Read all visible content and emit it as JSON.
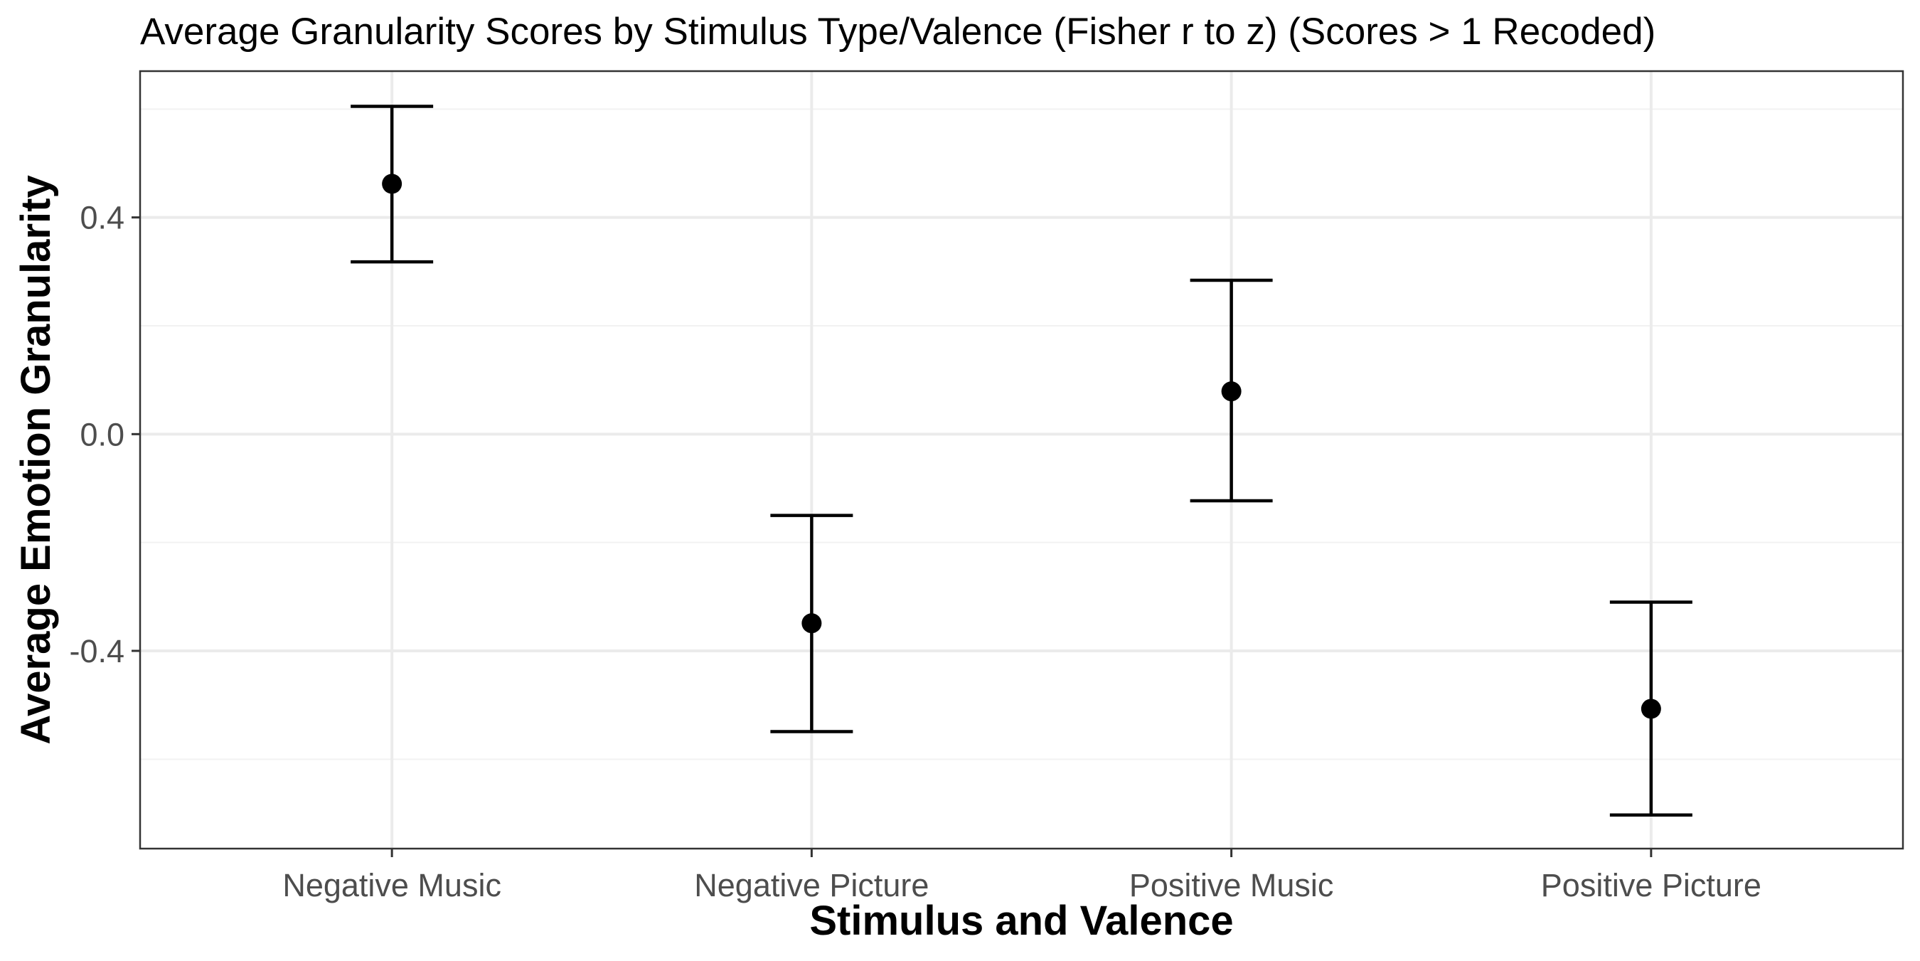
{
  "chart_data": {
    "type": "scatter",
    "title": "Average Granularity Scores by Stimulus Type/Valence (Fisher r to z) (Scores > 1 Recoded)",
    "xlabel": "Stimulus and Valence",
    "ylabel": "Average Emotion Granularity",
    "categories": [
      "Negative Music",
      "Negative Picture",
      "Positive Music",
      "Positive Picture"
    ],
    "values": [
      0.462,
      -0.349,
      0.079,
      -0.507
    ],
    "error_low": [
      0.318,
      -0.549,
      -0.123,
      -0.703
    ],
    "error_high": [
      0.605,
      -0.15,
      0.284,
      -0.31
    ],
    "ylim": [
      -0.765,
      0.67
    ],
    "yticks": [
      -0.4,
      0.0,
      0.4
    ],
    "ytick_labels": [
      "-0.4",
      "0.0",
      "0.4"
    ],
    "grid": true,
    "legend": "none"
  }
}
